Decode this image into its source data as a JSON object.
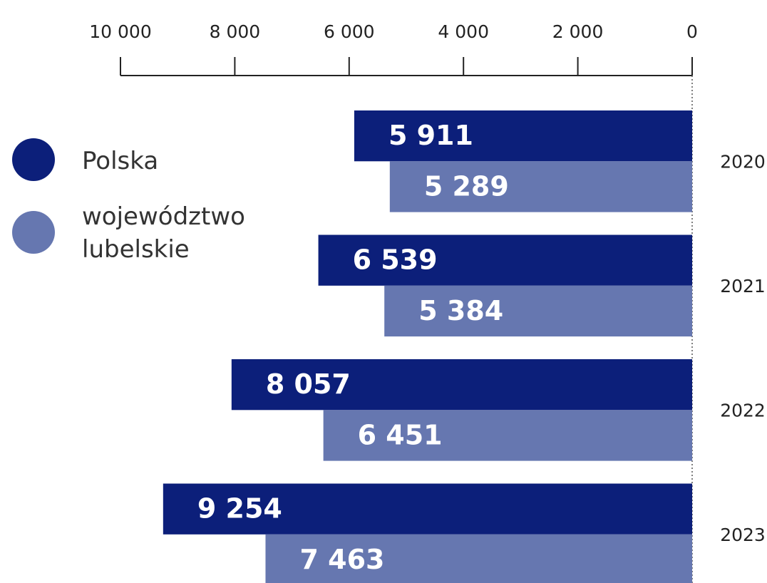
{
  "chart_data": {
    "type": "barh",
    "categories": [
      "2020",
      "2021",
      "2022",
      "2023"
    ],
    "series": [
      {
        "name": "Polska",
        "color": "#0c1f7a",
        "values": [
          5911,
          6539,
          8057,
          9254
        ],
        "value_labels": [
          "5 911",
          "6 539",
          "8 057",
          "9 254"
        ]
      },
      {
        "name": "województwo lubelskie",
        "color": "#6677b0",
        "values": [
          5289,
          5384,
          6451,
          7463
        ],
        "value_labels": [
          "5 289",
          "5 384",
          "6 451",
          "7 463"
        ]
      }
    ],
    "xlim": [
      10000,
      0
    ],
    "xticks": [
      {
        "value": 10000,
        "label": "10 000"
      },
      {
        "value": 8000,
        "label": "8 000"
      },
      {
        "value": 6000,
        "label": "6 000"
      },
      {
        "value": 4000,
        "label": "4 000"
      },
      {
        "value": 2000,
        "label": "2 000"
      },
      0
    ],
    "legend": "left"
  }
}
